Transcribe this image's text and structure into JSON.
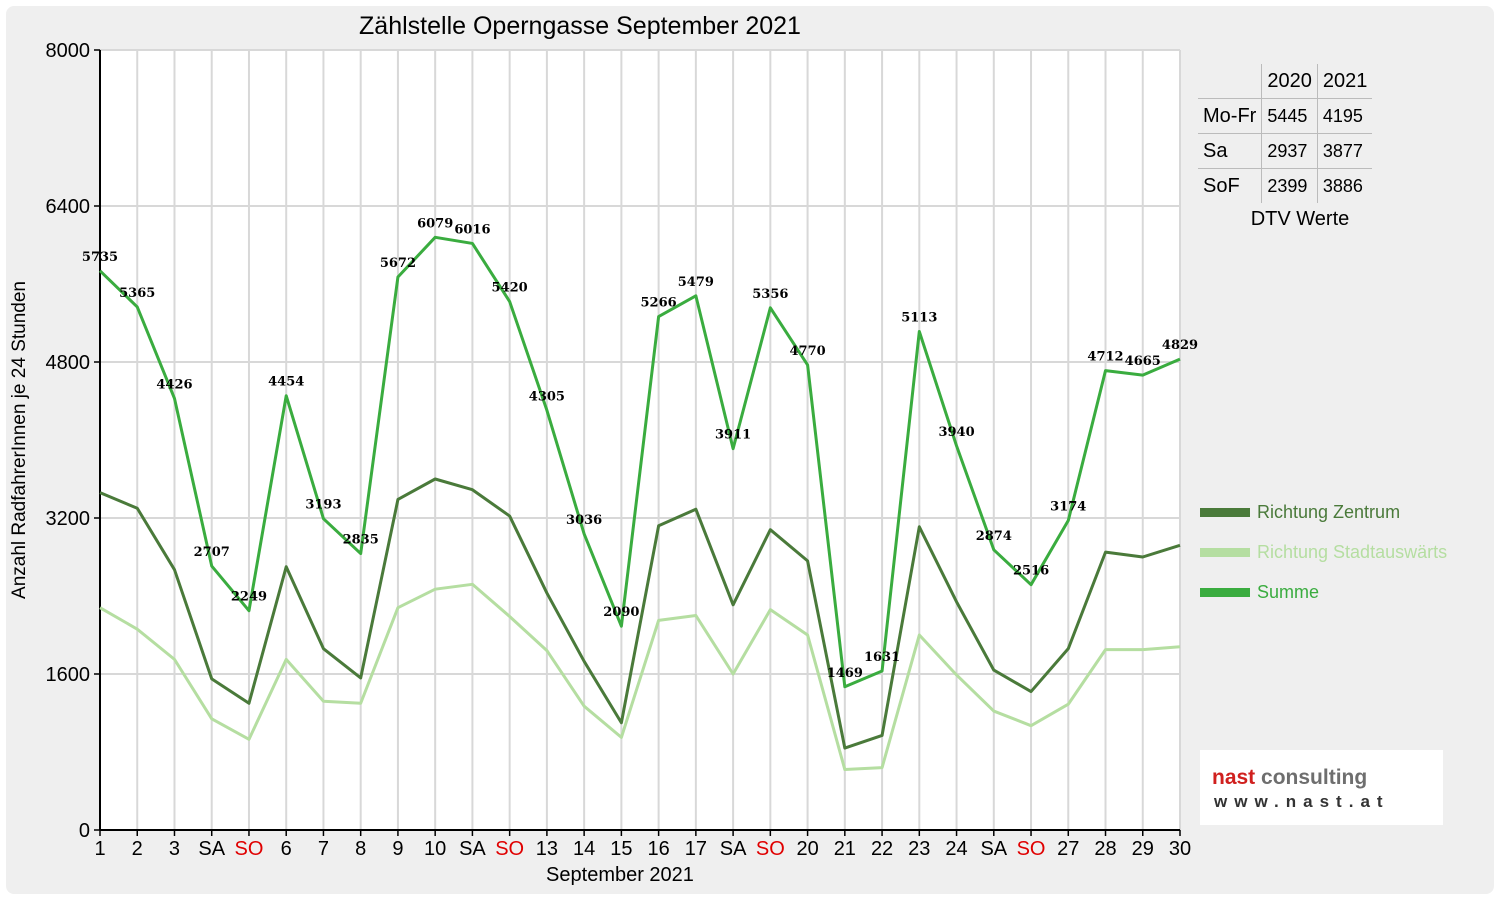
{
  "chart_data": {
    "type": "line",
    "title": "Zählstelle Operngasse September 2021",
    "xlabel": "September 2021",
    "ylabel": "Anzahl RadfahrerInnen je 24 Stunden",
    "ylim": [
      0,
      8000
    ],
    "yticks": [
      "0",
      "1600",
      "3200",
      "4800",
      "6400",
      "8000"
    ],
    "grid": true,
    "legend_position": "right",
    "categories": [
      "1",
      "2",
      "3",
      "SA",
      "SO",
      "6",
      "7",
      "8",
      "9",
      "10",
      "SA",
      "SO",
      "13",
      "14",
      "15",
      "16",
      "17",
      "SA",
      "SO",
      "20",
      "21",
      "22",
      "23",
      "24",
      "SA",
      "SO",
      "27",
      "28",
      "29",
      "30"
    ],
    "category_colors": [
      "#000000",
      "#000000",
      "#000000",
      "#000000",
      "#e00000",
      "#000000",
      "#000000",
      "#000000",
      "#000000",
      "#000000",
      "#000000",
      "#e00000",
      "#000000",
      "#000000",
      "#000000",
      "#000000",
      "#000000",
      "#000000",
      "#e00000",
      "#000000",
      "#000000",
      "#000000",
      "#000000",
      "#000000",
      "#000000",
      "#e00000",
      "#000000",
      "#000000",
      "#000000",
      "#000000"
    ],
    "series": [
      {
        "name": "Richtung Zentrum",
        "color": "#4a7a3a",
        "values": [
          3460,
          3300,
          2670,
          1550,
          1300,
          2700,
          1860,
          1560,
          3390,
          3600,
          3490,
          3220,
          2430,
          1730,
          1100,
          3120,
          3290,
          2310,
          3080,
          2760,
          840,
          970,
          3110,
          2340,
          1640,
          1420,
          1860,
          2850,
          2800,
          2920
        ]
      },
      {
        "name": "Richtung Stadtauswärts",
        "color": "#b5dea1",
        "values": [
          2280,
          2060,
          1750,
          1140,
          930,
          1750,
          1320,
          1300,
          2280,
          2470,
          2520,
          2190,
          1840,
          1270,
          950,
          2150,
          2200,
          1600,
          2260,
          2000,
          620,
          640,
          2000,
          1590,
          1220,
          1070,
          1290,
          1850,
          1850,
          1880
        ]
      },
      {
        "name": "Summe",
        "color": "#3aac3f",
        "values": [
          5735,
          5365,
          4426,
          2707,
          2249,
          4454,
          3193,
          2835,
          5672,
          6079,
          6016,
          5420,
          4305,
          3036,
          2090,
          5266,
          5479,
          3911,
          5356,
          4770,
          1469,
          1631,
          5113,
          3940,
          2874,
          2516,
          3174,
          4712,
          4665,
          4829
        ],
        "labels": [
          "5735",
          "5365",
          "4426",
          "2707",
          "2249",
          "4454",
          "3193",
          "2835",
          "5672",
          "6079",
          "6016",
          "5420",
          "4305",
          "3036",
          "2090",
          "5266",
          "5479",
          "3911",
          "5356",
          "4770",
          "1469",
          "1631",
          "5113",
          "3940",
          "2874",
          "2516",
          "3174",
          "4712",
          "4665",
          "4829"
        ]
      }
    ]
  },
  "dtv": {
    "headers": [
      "",
      "2020",
      "2021"
    ],
    "rows": [
      {
        "label": "Mo-Fr",
        "v2020": "5445",
        "v2021": "4195"
      },
      {
        "label": "Sa",
        "v2020": "2937",
        "v2021": "3877"
      },
      {
        "label": "SoF",
        "v2020": "2399",
        "v2021": "3886"
      }
    ],
    "caption": "DTV Werte"
  },
  "legend": {
    "items": [
      {
        "label": "Richtung Zentrum",
        "color": "#4a7a3a"
      },
      {
        "label": "Richtung Stadtauswärts",
        "color": "#b5dea1"
      },
      {
        "label": "Summe",
        "color": "#3aac3f"
      }
    ]
  },
  "logo": {
    "word1": "nast",
    "word2": "consulting",
    "url": "www.nast.at",
    "color1": "#d0201e",
    "color2": "#6e6e6e"
  }
}
